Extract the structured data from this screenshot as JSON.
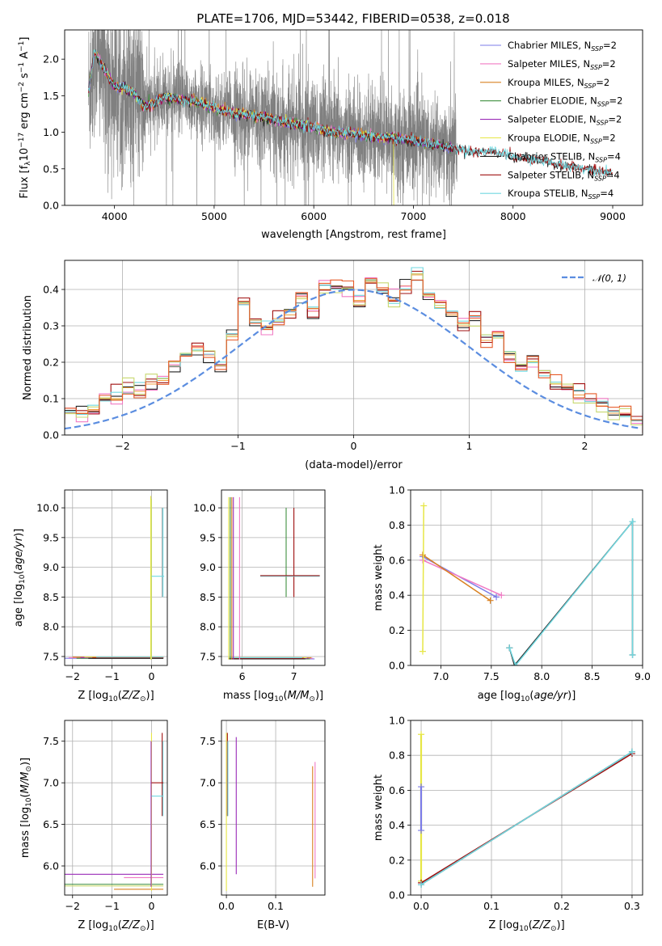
{
  "page_title": "PLATE=1706, MJD=53442, FIBERID=0538, z=0.018",
  "models": [
    {
      "name": "Chabrier MILES, N_SSP=2",
      "label": "Chabrier MILES, N",
      "sub": "SSP",
      "suffix": "=2",
      "color": "#7b7be8"
    },
    {
      "name": "Salpeter MILES, N_SSP=2",
      "label": "Salpeter MILES, N",
      "sub": "SSP",
      "suffix": "=2",
      "color": "#f07ac4"
    },
    {
      "name": "Kroupa MILES, N_SSP=2",
      "label": "Kroupa MILES, N",
      "sub": "SSP",
      "suffix": "=2",
      "color": "#d98020"
    },
    {
      "name": "Chabrier ELODIE, N_SSP=2",
      "label": "Chabrier ELODIE, N",
      "sub": "SSP",
      "suffix": "=2",
      "color": "#3f8f3f"
    },
    {
      "name": "Salpeter ELODIE, N_SSP=2",
      "label": "Salpeter ELODIE, N",
      "sub": "SSP",
      "suffix": "=2",
      "color": "#9a2bb8"
    },
    {
      "name": "Kroupa ELODIE, N_SSP=2",
      "label": "Kroupa ELODIE, N",
      "sub": "SSP",
      "suffix": "=2",
      "color": "#e6e645"
    },
    {
      "name": "Chabrier STELIB, N_SSP=4",
      "label": "Chabrier STELIB, N",
      "sub": "SSP",
      "suffix": "=4",
      "color": "#222222"
    },
    {
      "name": "Salpeter STELIB, N_SSP=4",
      "label": "Salpeter STELIB, N",
      "sub": "SSP",
      "suffix": "=4",
      "color": "#a01010"
    },
    {
      "name": "Kroupa STELIB, N_SSP=4",
      "label": "Kroupa STELIB, N",
      "sub": "SSP",
      "suffix": "=4",
      "color": "#70d8e0"
    }
  ],
  "chart_data": [
    {
      "id": "spectrum",
      "type": "line",
      "title": "PLATE=1706, MJD=53442, FIBERID=0538, z=0.018",
      "xlabel": "wavelength [Angstrom, rest frame]",
      "ylabel": "Flux [f_λ 10^-17 erg cm^-2 s^-1 A^-1]",
      "xlim": [
        3500,
        9300
      ],
      "ylim": [
        0,
        2.4
      ],
      "xticks": [
        4000,
        5000,
        6000,
        7000,
        8000,
        9000
      ],
      "yticks": [
        0.0,
        0.5,
        1.0,
        1.5,
        2.0
      ],
      "grid": false,
      "legend": "upper right",
      "observed_data": {
        "color": "#808080",
        "x_range": [
          3740,
          7440
        ]
      },
      "model_continuum": {
        "x": [
          3740,
          3800,
          3900,
          4000,
          4100,
          4200,
          4300,
          4400,
          4500,
          4600,
          4700,
          4800,
          4900,
          5000,
          5200,
          5400,
          5600,
          5800,
          6000,
          6200,
          6400,
          6600,
          6800,
          7000,
          7200,
          7400,
          7600,
          7800,
          8000,
          8200,
          8400,
          8600,
          8800,
          9000
        ],
        "y": [
          1.55,
          2.1,
          1.85,
          1.62,
          1.6,
          1.52,
          1.35,
          1.4,
          1.48,
          1.45,
          1.44,
          1.42,
          1.38,
          1.33,
          1.26,
          1.22,
          1.17,
          1.11,
          1.06,
          1.0,
          0.97,
          0.93,
          0.92,
          0.88,
          0.83,
          0.78,
          0.73,
          0.73,
          0.66,
          0.62,
          0.57,
          0.52,
          0.48,
          0.44
        ]
      }
    },
    {
      "id": "residuals",
      "type": "line",
      "xlabel": "(data-model)/error",
      "ylabel": "Normed distribution",
      "xlim": [
        -2.5,
        2.5
      ],
      "ylim": [
        0,
        0.48
      ],
      "xticks": [
        -2,
        -1,
        0,
        1,
        2
      ],
      "yticks": [
        0.0,
        0.1,
        0.2,
        0.3,
        0.4
      ],
      "grid": true,
      "legend": "upper right",
      "legend_label": "𝒩(0, 1)",
      "gaussian": {
        "mean": 0,
        "sigma": 1,
        "color": "#5b8de0"
      },
      "histogram_bin_width": 0.1,
      "histogram_values": [
        0.02,
        0.02,
        0.05,
        0.06,
        0.06,
        0.07,
        0.1,
        0.1,
        0.13,
        0.12,
        0.14,
        0.15,
        0.19,
        0.22,
        0.24,
        0.22,
        0.19,
        0.27,
        0.36,
        0.31,
        0.3,
        0.32,
        0.33,
        0.38,
        0.34,
        0.4,
        0.41,
        0.4,
        0.37,
        0.42,
        0.4,
        0.37,
        0.41,
        0.44,
        0.38,
        0.35,
        0.33,
        0.3,
        0.32,
        0.26,
        0.28,
        0.22,
        0.18,
        0.2,
        0.17,
        0.14,
        0.13,
        0.11,
        0.1,
        0.08,
        0.06,
        0.06,
        0.04,
        0.03,
        0.03,
        0.02
      ]
    },
    {
      "id": "age_vs_Z",
      "type": "scatter",
      "xlabel": "Z [log10(Z/Z☉)]",
      "ylabel": "age  [log10(age/yr)]",
      "xlim": [
        -2.2,
        0.4
      ],
      "ylim": [
        7.35,
        10.3
      ],
      "xticks": [
        -2,
        -1,
        0
      ],
      "yticks": [
        7.5,
        8.0,
        8.5,
        9.0,
        9.5,
        10.0
      ],
      "grid": true
    },
    {
      "id": "age_vs_mass",
      "type": "scatter",
      "xlabel": "mass [log10(M/M☉)]",
      "xlim": [
        5.6,
        7.6
      ],
      "ylim": [
        7.35,
        10.3
      ],
      "xticks": [
        6,
        7
      ],
      "yticks": [
        7.5,
        8.0,
        8.5,
        9.0,
        9.5,
        10.0
      ],
      "grid": true
    },
    {
      "id": "massweight_vs_age",
      "type": "line",
      "xlabel": "age  [log10(age/yr)]",
      "ylabel": "mass weight",
      "xlim": [
        6.7,
        9.0
      ],
      "ylim": [
        0.0,
        1.0
      ],
      "xticks": [
        7.0,
        7.5,
        8.0,
        8.5,
        9.0
      ],
      "yticks": [
        0.0,
        0.2,
        0.4,
        0.6,
        0.8,
        1.0
      ],
      "grid": true,
      "series": [
        {
          "model": "Chabrier MILES",
          "x": [
            6.82,
            7.55
          ],
          "y": [
            0.62,
            0.39
          ]
        },
        {
          "model": "Salpeter MILES",
          "x": [
            6.82,
            7.6
          ],
          "y": [
            0.6,
            0.4
          ]
        },
        {
          "model": "Kroupa MILES",
          "x": [
            6.82,
            7.49
          ],
          "y": [
            0.63,
            0.37
          ]
        },
        {
          "model": "Kroupa ELODIE",
          "x": [
            6.82,
            6.83
          ],
          "y": [
            0.08,
            0.91
          ]
        },
        {
          "model": "Chabrier STELIB",
          "x": [
            7.68,
            7.73,
            8.9,
            8.9
          ],
          "y": [
            0.1,
            0.0,
            0.82,
            0.06
          ]
        },
        {
          "model": "Kroupa STELIB",
          "x": [
            7.68,
            7.74,
            8.9,
            8.9
          ],
          "y": [
            0.1,
            0.0,
            0.82,
            0.06
          ]
        }
      ]
    },
    {
      "id": "mass_vs_Z",
      "type": "scatter",
      "xlabel": "Z [log10(Z/Z☉)]",
      "ylabel": "mass [log10(M/M☉)]",
      "xlim": [
        -2.2,
        0.4
      ],
      "ylim": [
        5.65,
        7.75
      ],
      "xticks": [
        -2,
        -1,
        0
      ],
      "yticks": [
        6.0,
        6.5,
        7.0,
        7.5
      ],
      "grid": true
    },
    {
      "id": "mass_vs_EBV",
      "type": "scatter",
      "xlabel": "E(B-V)",
      "xlim": [
        -0.01,
        0.2
      ],
      "ylim": [
        5.65,
        7.75
      ],
      "xticks": [
        0.0,
        0.1
      ],
      "yticks": [
        6.0,
        6.5,
        7.0,
        7.5
      ],
      "grid": true
    },
    {
      "id": "massweight_vs_Z",
      "type": "line",
      "xlabel": "Z [log10(Z/Z☉)]",
      "ylabel": "mass weight",
      "xlim": [
        -0.015,
        0.315
      ],
      "ylim": [
        0.0,
        1.0
      ],
      "xticks": [
        0.0,
        0.1,
        0.2,
        0.3
      ],
      "yticks": [
        0.0,
        0.2,
        0.4,
        0.6,
        0.8,
        1.0
      ],
      "grid": true,
      "series": [
        {
          "model": "Kroupa ELODIE",
          "x": [
            0.0,
            0.0
          ],
          "y": [
            0.08,
            0.92
          ]
        },
        {
          "model": "Chabrier MILES",
          "x": [
            0.0,
            0.0
          ],
          "y": [
            0.37,
            0.62
          ]
        },
        {
          "model": "Chabrier STELIB",
          "x": [
            0.0,
            0.3
          ],
          "y": [
            0.06,
            0.82
          ]
        },
        {
          "model": "Salpeter STELIB",
          "x": [
            0.0,
            0.3
          ],
          "y": [
            0.07,
            0.81
          ]
        },
        {
          "model": "Kroupa STELIB",
          "x": [
            0.0,
            0.3
          ],
          "y": [
            0.06,
            0.82
          ]
        }
      ]
    }
  ]
}
